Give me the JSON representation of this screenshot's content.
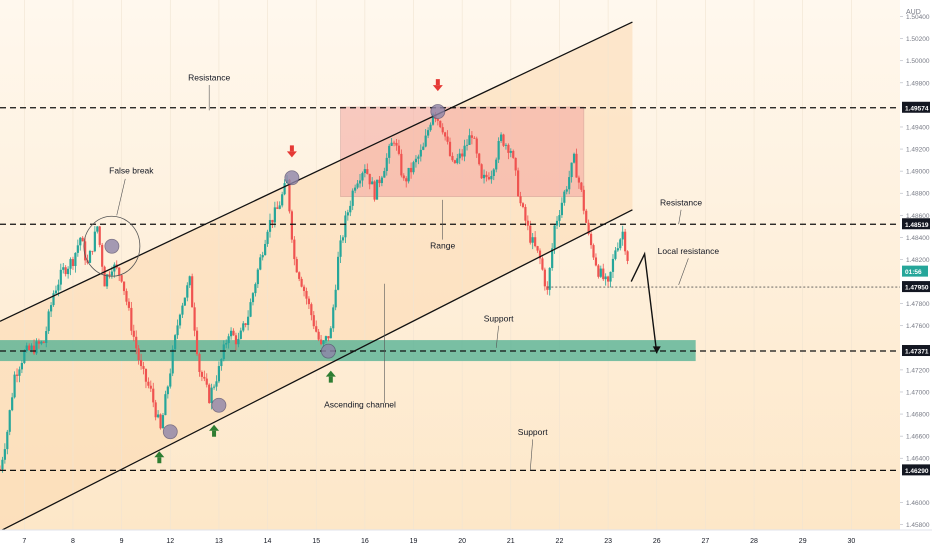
{
  "chart_data": {
    "type": "candlestick",
    "currency": "AUD",
    "y_range": [
      1.4575,
      1.5055
    ],
    "x_range": [
      0,
      37
    ],
    "x_ticks": [
      {
        "label": "7",
        "x": 1.0
      },
      {
        "label": "8",
        "x": 3.0
      },
      {
        "label": "9",
        "x": 5.0
      },
      {
        "label": "12",
        "x": 7.0
      },
      {
        "label": "13",
        "x": 9.0
      },
      {
        "label": "14",
        "x": 11.0
      },
      {
        "label": "15",
        "x": 13.0
      },
      {
        "label": "16",
        "x": 15.0
      },
      {
        "label": "19",
        "x": 17.0
      },
      {
        "label": "20",
        "x": 19.0
      },
      {
        "label": "21",
        "x": 21.0
      },
      {
        "label": "22",
        "x": 23.0
      },
      {
        "label": "23",
        "x": 25.0
      },
      {
        "label": "26",
        "x": 27.0
      },
      {
        "label": "27",
        "x": 29.0
      },
      {
        "label": "28",
        "x": 31.0
      },
      {
        "label": "29",
        "x": 33.0
      },
      {
        "label": "30",
        "x": 35.0
      }
    ],
    "y_ticks": [
      "1.50400",
      "1.50200",
      "1.50000",
      "1.49800",
      "1.49400",
      "1.49200",
      "1.49000",
      "1.48800",
      "1.48600",
      "1.48400",
      "1.48200",
      "1.47800",
      "1.47600",
      "1.47200",
      "1.47000",
      "1.46800",
      "1.46600",
      "1.46400",
      "1.46000",
      "1.45800"
    ],
    "price_labels": [
      {
        "value": "1.49574",
        "kind": "level"
      },
      {
        "value": "1.48519",
        "kind": "level"
      },
      {
        "value": "1.47950",
        "kind": "level"
      },
      {
        "value": "1.47371",
        "kind": "level"
      },
      {
        "value": "1.46290",
        "kind": "level"
      },
      {
        "value": "01:56",
        "kind": "current"
      }
    ],
    "levels": [
      {
        "name": "Resistance",
        "y": 1.49574
      },
      {
        "name": "Resistance",
        "y": 1.48519
      },
      {
        "name": "Local resistance",
        "y": 1.4795
      },
      {
        "name": "Support",
        "y": 1.47371
      },
      {
        "name": "Support",
        "y": 1.4629
      }
    ],
    "support_zone": [
      1.4728,
      1.4747
    ],
    "range_box": {
      "x": [
        14.0,
        24.0
      ],
      "y": [
        1.4877,
        1.4958
      ]
    },
    "channel": {
      "upper": [
        [
          0,
          1.4764
        ],
        [
          26.0,
          1.5035
        ]
      ],
      "lower": [
        [
          0,
          1.4574
        ],
        [
          26.0,
          1.4865
        ]
      ]
    },
    "channel_fill_right": 26.0,
    "path": [
      [
        0,
        1.463
      ],
      [
        0.3,
        1.4665
      ],
      [
        0.6,
        1.4715
      ],
      [
        1.0,
        1.4735
      ],
      [
        1.4,
        1.474
      ],
      [
        1.8,
        1.4745
      ],
      [
        2.2,
        1.479
      ],
      [
        2.6,
        1.481
      ],
      [
        3.0,
        1.482
      ],
      [
        3.3,
        1.484
      ],
      [
        3.6,
        1.4815
      ],
      [
        4.0,
        1.485
      ],
      [
        4.3,
        1.48
      ],
      [
        4.6,
        1.4815
      ],
      [
        5.0,
        1.4805
      ],
      [
        5.4,
        1.476
      ],
      [
        5.8,
        1.472
      ],
      [
        6.2,
        1.47
      ],
      [
        6.6,
        1.4665
      ],
      [
        7.0,
        1.472
      ],
      [
        7.4,
        1.4775
      ],
      [
        7.8,
        1.48
      ],
      [
        8.2,
        1.472
      ],
      [
        8.6,
        1.4695
      ],
      [
        9.0,
        1.472
      ],
      [
        9.4,
        1.4755
      ],
      [
        9.8,
        1.4745
      ],
      [
        10.2,
        1.477
      ],
      [
        10.6,
        1.481
      ],
      [
        11.0,
        1.485
      ],
      [
        11.4,
        1.4865
      ],
      [
        11.8,
        1.489
      ],
      [
        12.1,
        1.482
      ],
      [
        12.4,
        1.48
      ],
      [
        12.8,
        1.477
      ],
      [
        13.2,
        1.474
      ],
      [
        13.6,
        1.4755
      ],
      [
        13.9,
        1.482
      ],
      [
        14.2,
        1.4855
      ],
      [
        14.6,
        1.489
      ],
      [
        15.0,
        1.4905
      ],
      [
        15.4,
        1.488
      ],
      [
        15.8,
        1.4905
      ],
      [
        16.2,
        1.493
      ],
      [
        16.6,
        1.489
      ],
      [
        17.0,
        1.4905
      ],
      [
        17.4,
        1.492
      ],
      [
        17.8,
        1.4955
      ],
      [
        18.2,
        1.494
      ],
      [
        18.6,
        1.4905
      ],
      [
        19.0,
        1.4915
      ],
      [
        19.4,
        1.4935
      ],
      [
        19.8,
        1.489
      ],
      [
        20.2,
        1.49
      ],
      [
        20.6,
        1.493
      ],
      [
        21.0,
        1.492
      ],
      [
        21.4,
        1.487
      ],
      [
        21.8,
        1.484
      ],
      [
        22.2,
        1.482
      ],
      [
        22.5,
        1.479
      ],
      [
        22.8,
        1.485
      ],
      [
        23.2,
        1.488
      ],
      [
        23.6,
        1.491
      ],
      [
        23.9,
        1.488
      ],
      [
        24.2,
        1.484
      ],
      [
        24.6,
        1.481
      ],
      [
        25.0,
        1.4795
      ],
      [
        25.3,
        1.483
      ],
      [
        25.6,
        1.4845
      ],
      [
        25.9,
        1.481
      ]
    ],
    "projection": [
      [
        25.95,
        1.48
      ],
      [
        26.5,
        1.4825
      ],
      [
        27.0,
        1.4735
      ]
    ],
    "circles": [
      [
        4.6,
        1.4832
      ],
      [
        7.0,
        1.4664
      ],
      [
        9.0,
        1.4688
      ],
      [
        12.0,
        1.4894
      ],
      [
        13.5,
        1.4737
      ],
      [
        18.0,
        1.4954
      ]
    ],
    "arrows": [
      {
        "dir": "down",
        "x": 12.0,
        "y": 1.4917,
        "color": "#e53935"
      },
      {
        "dir": "down",
        "x": 18.0,
        "y": 1.4977,
        "color": "#e53935"
      },
      {
        "dir": "up",
        "x": 6.55,
        "y": 1.464,
        "color": "#2e7d32"
      },
      {
        "dir": "up",
        "x": 8.8,
        "y": 1.4664,
        "color": "#2e7d32"
      },
      {
        "dir": "up",
        "x": 13.6,
        "y": 1.4713,
        "color": "#2e7d32"
      }
    ],
    "annotations": [
      {
        "text": "Resistance",
        "x": 8.6,
        "y": 1.4982
      },
      {
        "text": "False break",
        "x": 5.4,
        "y": 1.4898
      },
      {
        "text": "Range",
        "x": 18.2,
        "y": 1.483
      },
      {
        "text": "Resistance",
        "x": 28.0,
        "y": 1.4869
      },
      {
        "text": "Local resistance",
        "x": 28.3,
        "y": 1.4825
      },
      {
        "text": "Support",
        "x": 20.5,
        "y": 1.4764
      },
      {
        "text": "Ascending channel",
        "x": 14.8,
        "y": 1.4686
      },
      {
        "text": "Support",
        "x": 21.9,
        "y": 1.4661
      }
    ],
    "colors": {
      "bull": "#26a69a",
      "bear": "#ef5350",
      "support_zone": "#4caf91",
      "range_box": "#f4a6a0",
      "channel_fill": "#fbd9b0",
      "background_glow": "#fde7c8"
    }
  }
}
